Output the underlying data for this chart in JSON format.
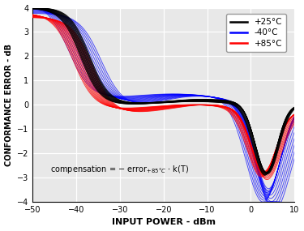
{
  "xlabel": "INPUT POWER - dBm",
  "ylabel": "CONFORMANCE ERROR - dB",
  "xlim": [
    -50,
    10
  ],
  "ylim": [
    -4.0,
    4.0
  ],
  "xticks": [
    -50,
    -40,
    -30,
    -20,
    -10,
    0,
    10
  ],
  "yticks": [
    -4.0,
    -3.0,
    -2.0,
    -1.0,
    0.0,
    1.0,
    2.0,
    3.0,
    4.0
  ],
  "legend_labels": [
    "+25°C",
    "-40°C",
    "+85°C"
  ],
  "legend_colors": [
    "black",
    "blue",
    "red"
  ],
  "n_curves": 15,
  "background_color": "#e8e8e8",
  "grid_color": "white"
}
